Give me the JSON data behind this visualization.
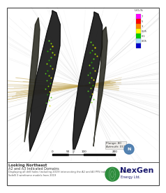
{
  "bg_color": "#f8f8f8",
  "main_bg": "#f0eeea",
  "footer_bg": "#f5f3ef",
  "colorbar_colors": [
    "#ff00ff",
    "#ff0000",
    "#ff8800",
    "#ffff00",
    "#00cc00",
    "#aaddff",
    "#0000cc"
  ],
  "colorbar_labels": [
    "7",
    "5",
    "3",
    "0.25",
    "0.1",
    "0.05"
  ],
  "colorbar_title": "U3O8%",
  "plunge_text": "Plunge: 80\nAzimuth: 057",
  "footer_line1": "Looking Northeast",
  "footer_line2": "A2 and A3 Indicated Domains",
  "footer_line3": "Displaying all drill holes (including 2019) intersecting the A2 and A3 PFS Indicated Domains and",
  "footer_line4": "SafeN 3 wireframe models from 2019",
  "nexgen_text": "NexGen",
  "nexgen_sub": "Energy Ltd."
}
